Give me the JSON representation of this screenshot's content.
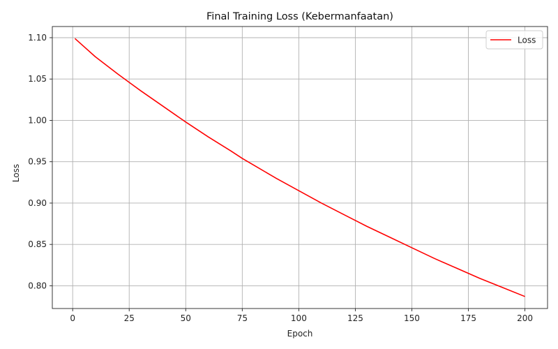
{
  "chart_data": {
    "type": "line",
    "title": "Final Training Loss (Kebermanfaatan)",
    "xlabel": "Epoch",
    "ylabel": "Loss",
    "xlim": [
      -9,
      210
    ],
    "ylim": [
      0.7725,
      1.1135
    ],
    "xticks": [
      0,
      25,
      50,
      75,
      100,
      125,
      150,
      175,
      200
    ],
    "xtick_labels": [
      "0",
      "25",
      "50",
      "75",
      "100",
      "125",
      "150",
      "175",
      "200"
    ],
    "yticks": [
      0.8,
      0.85,
      0.9,
      0.95,
      1.0,
      1.05,
      1.1
    ],
    "ytick_labels": [
      "0.80",
      "0.85",
      "0.90",
      "0.95",
      "1.00",
      "1.05",
      "1.10"
    ],
    "grid": true,
    "legend": {
      "position": "top-right",
      "entries": [
        "Loss"
      ]
    },
    "series": [
      {
        "name": "Loss",
        "color": "#ff0000",
        "x": [
          1,
          10,
          20,
          25,
          30,
          40,
          50,
          60,
          70,
          75,
          80,
          90,
          100,
          110,
          120,
          125,
          130,
          140,
          150,
          160,
          170,
          175,
          180,
          190,
          200
        ],
        "y": [
          1.099,
          1.077,
          1.056,
          1.046,
          1.036,
          1.017,
          0.998,
          0.98,
          0.963,
          0.954,
          0.946,
          0.93,
          0.915,
          0.9,
          0.886,
          0.879,
          0.872,
          0.859,
          0.846,
          0.833,
          0.821,
          0.815,
          0.809,
          0.798,
          0.787
        ]
      }
    ]
  }
}
